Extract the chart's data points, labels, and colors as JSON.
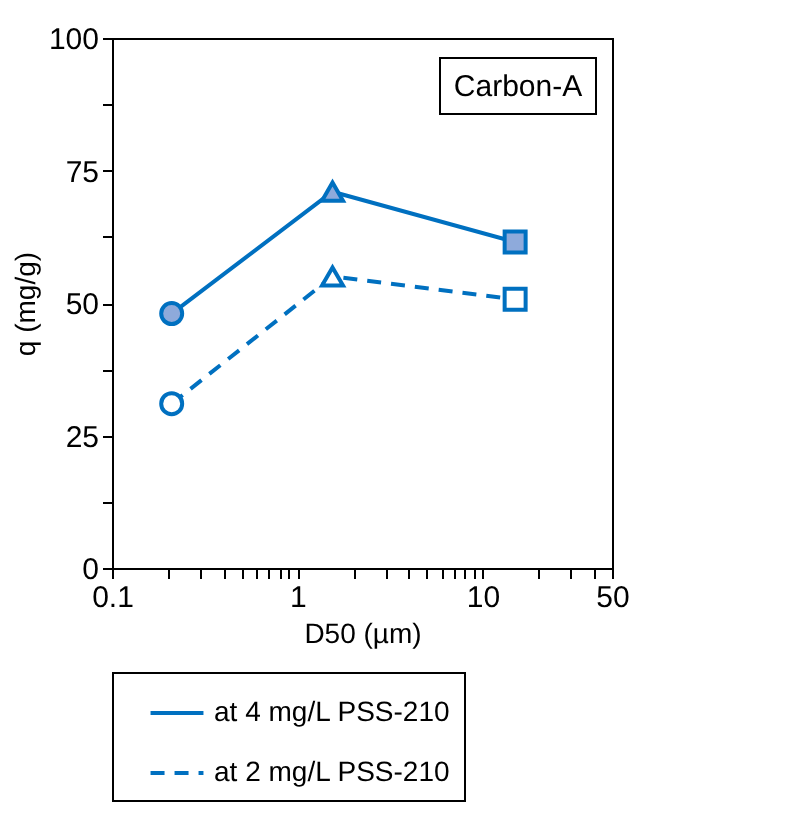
{
  "chart_data": {
    "type": "line",
    "xlabel": "D50 (µm)",
    "ylabel": "q (mg/g)",
    "log": "x",
    "xlim": [
      0.1,
      50
    ],
    "ylim": [
      0,
      100
    ],
    "xticks": [
      0.1,
      {
        "value": 0.2,
        "label": null
      },
      {
        "value": 0.3,
        "label": null
      },
      {
        "value": 0.4,
        "label": null
      },
      {
        "value": 0.5,
        "label": null
      },
      {
        "value": 0.6,
        "label": null
      },
      {
        "value": 0.7,
        "label": null
      },
      {
        "value": 0.8,
        "label": null
      },
      {
        "value": 0.9,
        "label": null
      },
      1,
      {
        "value": 2,
        "label": null
      },
      {
        "value": 3,
        "label": null
      },
      {
        "value": 4,
        "label": null
      },
      {
        "value": 5,
        "label": null
      },
      {
        "value": 6,
        "label": null
      },
      {
        "value": 7,
        "label": null
      },
      {
        "value": 8,
        "label": null
      },
      {
        "value": 9,
        "label": null
      },
      10,
      {
        "value": 20,
        "label": null
      },
      {
        "value": 30,
        "label": null
      },
      {
        "value": 40,
        "label": null
      },
      50
    ],
    "yticks": [
      0,
      {
        "value": 12.5,
        "label": null
      },
      25,
      {
        "value": 37.5,
        "label": null
      },
      50,
      {
        "value": 62.5,
        "label": null
      },
      75,
      {
        "value": 87.5,
        "label": null
      },
      100
    ],
    "grid": false,
    "legend": "bottom",
    "annotations": [
      "Carbon-A"
    ],
    "series": [
      {
        "name": "at 4 mg/L PSS-210",
        "color": "#0070c0",
        "line_style": "solid",
        "marker": "none",
        "x": [
          0.21,
          1.55,
          15
        ],
        "values": [
          48,
          71,
          61.5
        ]
      },
      {
        "name": "at 2 mg/L PSS-210",
        "color": "#0070c0",
        "line_style": "dashed",
        "marker": "none",
        "x": [
          0.21,
          1.55,
          15
        ],
        "values": [
          31,
          55,
          50.7
        ]
      },
      {
        "type": "scatter",
        "marker": "circle",
        "color": "#0070c0",
        "colors": [
          "#8eaadb",
          "#ffffff"
        ],
        "x": [
          0.21,
          0.21
        ],
        "values": [
          48,
          31
        ]
      },
      {
        "type": "scatter",
        "marker": "triangle",
        "color": "#0070c0",
        "colors": [
          "#8eaadb",
          "#ffffff"
        ],
        "x": [
          1.55,
          1.55
        ],
        "values": [
          71,
          55
        ]
      },
      {
        "type": "scatter",
        "marker": "square",
        "color": "#0070c0",
        "colors": [
          "#8eaadb",
          "#ffffff"
        ],
        "x": [
          15,
          15
        ],
        "values": [
          61.5,
          50.7
        ]
      }
    ]
  }
}
